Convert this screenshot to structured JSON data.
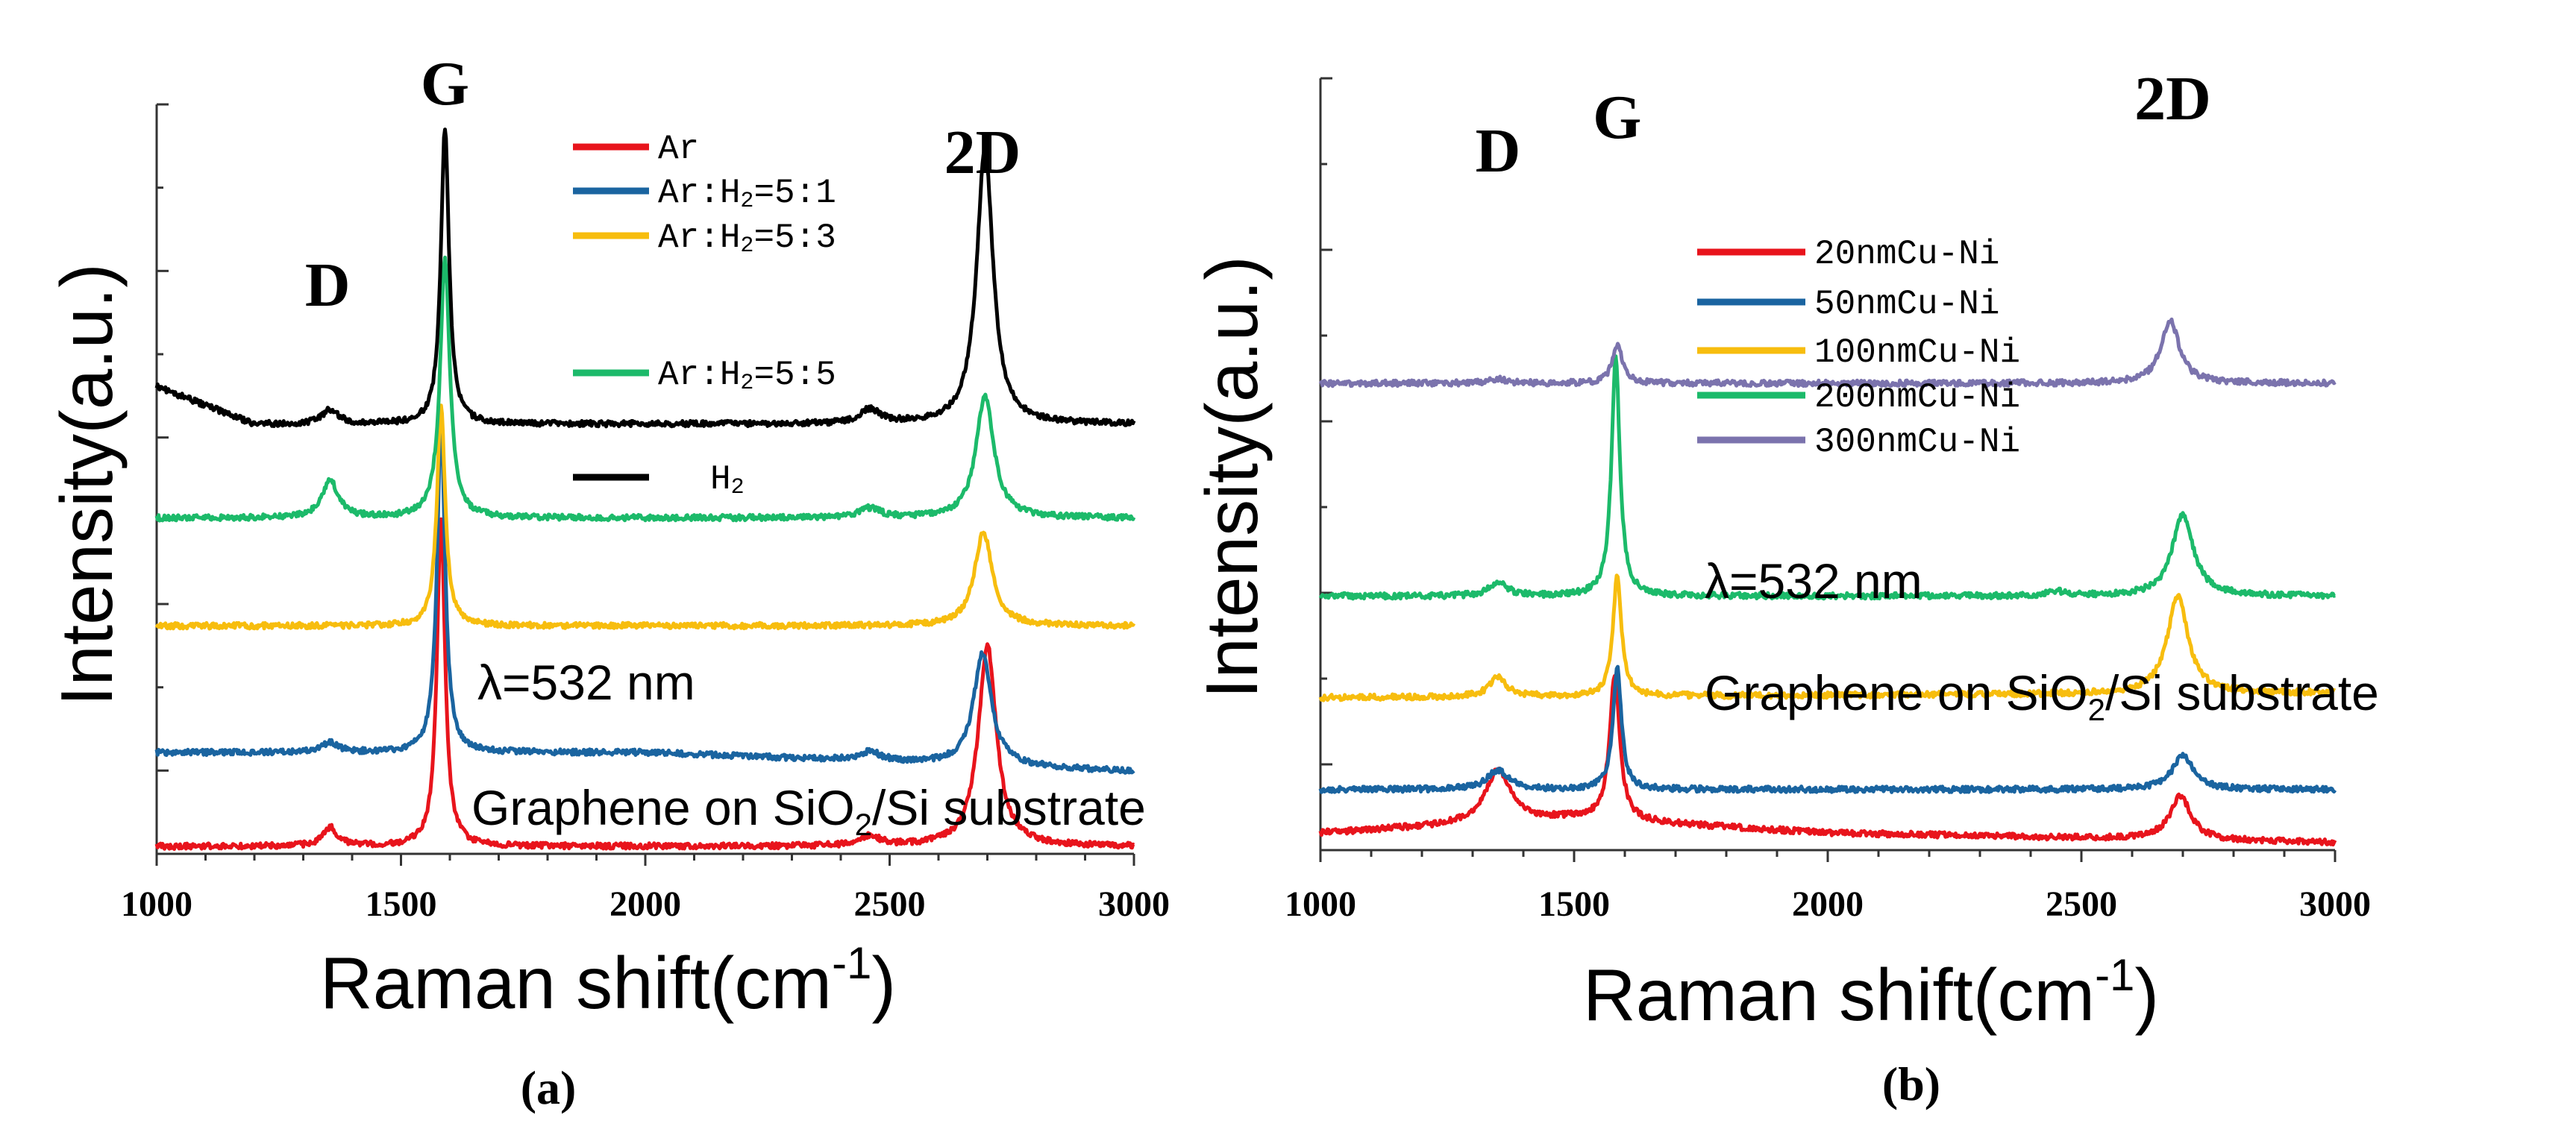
{
  "chart_data": [
    {
      "type": "line",
      "panel_label": "(a)",
      "xlabel": "Raman shift(cm",
      "xlabel_sup": "-1",
      "xlabel_close": ")",
      "ylabel": "Intensity(a.u.)",
      "xlim": [
        1000,
        3000
      ],
      "x_ticks": [
        "1000",
        "1500",
        "2000",
        "2500",
        "3000"
      ],
      "peak_labels": [
        {
          "text": "D",
          "x": 1350
        },
        {
          "text": "G",
          "x": 1590
        },
        {
          "text": "2D",
          "x": 2690
        }
      ],
      "annotations": {
        "wavelength": "λ=532 nm",
        "substrate_pre": "Graphene  on SiO",
        "substrate_sub": "2",
        "substrate_post": "/Si substrate"
      },
      "legend": [
        {
          "main": "Ar",
          "sub": "",
          "tail": "",
          "color": "#e8141c"
        },
        {
          "main": "Ar:H",
          "sub": "2",
          "tail": "=5:1",
          "color": "#1a64a0"
        },
        {
          "main": "Ar:H",
          "sub": "2",
          "tail": "=5:3",
          "color": "#f7bd0e"
        },
        {
          "main": "Ar:H",
          "sub": "2",
          "tail": "=5:5",
          "color": "#1cba6a"
        },
        {
          "main": "H",
          "sub": "2",
          "tail": "",
          "color": "#000000"
        }
      ],
      "series": [
        {
          "name": "Ar",
          "color": "#e8141c",
          "offset": 0.0,
          "baseline_x": [
            1000,
            2000,
            3000
          ],
          "baseline_y": [
            0.0,
            0.0,
            0.0
          ],
          "peaks": [
            [
              1355,
              0.04,
              18
            ],
            [
              1582,
              0.7,
              10
            ],
            [
              2460,
              0.02,
              25
            ],
            [
              2700,
              0.43,
              22
            ]
          ]
        },
        {
          "name": "Ar:H2=5:1",
          "color": "#1a64a0",
          "offset": 0.2,
          "baseline_x": [
            1000,
            2000,
            3000
          ],
          "baseline_y": [
            0.0,
            0.0,
            -0.04
          ],
          "peaks": [
            [
              1355,
              0.02,
              20
            ],
            [
              1582,
              0.7,
              10
            ],
            [
              2460,
              0.02,
              25
            ],
            [
              2690,
              0.24,
              22
            ]
          ]
        },
        {
          "name": "Ar:H2=5:3",
          "color": "#f7bd0e",
          "offset": 0.47,
          "baseline_x": [
            1000,
            2000,
            3000
          ],
          "baseline_y": [
            0.0,
            0.0,
            0.0
          ],
          "peaks": [
            [
              1582,
              0.47,
              10
            ],
            [
              2692,
              0.2,
              22
            ]
          ]
        },
        {
          "name": "Ar:H2=5:5",
          "color": "#1cba6a",
          "offset": 0.7,
          "baseline_x": [
            1000,
            2000,
            3000
          ],
          "baseline_y": [
            0.0,
            0.0,
            0.0
          ],
          "peaks": [
            [
              1355,
              0.08,
              20
            ],
            [
              1590,
              0.55,
              12
            ],
            [
              2460,
              0.02,
              25
            ],
            [
              2695,
              0.26,
              22
            ]
          ]
        },
        {
          "name": "H2",
          "color": "#000000",
          "offset": 0.9,
          "baseline_x": [
            1000,
            1200,
            1500,
            2000,
            3000
          ],
          "baseline_y": [
            0.08,
            0.0,
            0.0,
            0.0,
            0.0
          ],
          "peaks": [
            [
              1355,
              0.03,
              20
            ],
            [
              1590,
              0.63,
              10
            ],
            [
              2460,
              0.03,
              25
            ],
            [
              2695,
              0.59,
              20
            ]
          ]
        }
      ]
    },
    {
      "type": "line",
      "panel_label": "(b)",
      "xlabel": "Raman shift(cm",
      "xlabel_sup": "-1",
      "xlabel_close": ")",
      "ylabel": "Intensity(a.u.)",
      "xlim": [
        1000,
        3000
      ],
      "x_ticks": [
        "1000",
        "1500",
        "2000",
        "2500",
        "3000"
      ],
      "peak_labels": [
        {
          "text": "D",
          "x": 1350
        },
        {
          "text": "G",
          "x": 1585
        },
        {
          "text": "2D",
          "x": 2680
        }
      ],
      "annotations": {
        "wavelength": "λ=532 nm",
        "substrate_pre": "Graphene  on SiO",
        "substrate_sub": "2",
        "substrate_post": "/Si substrate"
      },
      "legend": [
        {
          "main": "20nmCu-Ni",
          "sub": "",
          "tail": "",
          "color": "#e8141c"
        },
        {
          "main": "50nmCu-Ni",
          "sub": "",
          "tail": "",
          "color": "#1a64a0"
        },
        {
          "main": "100nmCu-Ni",
          "sub": "",
          "tail": "",
          "color": "#f7bd0e"
        },
        {
          "main": "200nmCu-Ni",
          "sub": "",
          "tail": "",
          "color": "#1cba6a"
        },
        {
          "main": "300nmCu-Ni",
          "sub": "",
          "tail": "",
          "color": "#7b73ad"
        }
      ],
      "series": [
        {
          "name": "20nmCu-Ni",
          "color": "#e8141c",
          "offset": 0.0,
          "baseline_x": [
            1000,
            1500,
            2000,
            3000
          ],
          "baseline_y": [
            0.02,
            0.05,
            0.02,
            0.0
          ],
          "peaks": [
            [
              1350,
              0.11,
              30
            ],
            [
              1580,
              0.3,
              12
            ],
            [
              2695,
              0.09,
              25
            ]
          ]
        },
        {
          "name": "50nmCu-Ni",
          "color": "#1a64a0",
          "offset": 0.11,
          "baseline_x": [
            1000,
            3000
          ],
          "baseline_y": [
            0.0,
            0.0
          ],
          "peaks": [
            [
              1350,
              0.04,
              25
            ],
            [
              1585,
              0.25,
              10
            ],
            [
              2700,
              0.07,
              25
            ]
          ]
        },
        {
          "name": "100nmCu-Ni",
          "color": "#f7bd0e",
          "offset": 0.3,
          "baseline_x": [
            1000,
            3000
          ],
          "baseline_y": [
            0.0,
            0.01
          ],
          "peaks": [
            [
              1350,
              0.04,
              20
            ],
            [
              1585,
              0.25,
              10
            ],
            [
              2690,
              0.2,
              25
            ]
          ]
        },
        {
          "name": "200nmCu-Ni",
          "color": "#1cba6a",
          "offset": 0.51,
          "baseline_x": [
            1000,
            3000
          ],
          "baseline_y": [
            0.0,
            0.0
          ],
          "peaks": [
            [
              1350,
              0.03,
              20
            ],
            [
              1582,
              0.49,
              10
            ],
            [
              2450,
              0.01,
              20
            ],
            [
              2700,
              0.17,
              25
            ]
          ]
        },
        {
          "name": "300nmCu-Ni",
          "color": "#7b73ad",
          "offset": 0.95,
          "baseline_x": [
            1000,
            3000
          ],
          "baseline_y": [
            0.0,
            0.0
          ],
          "peaks": [
            [
              1350,
              0.01,
              20
            ],
            [
              1585,
              0.08,
              12
            ],
            [
              2675,
              0.13,
              22
            ]
          ]
        }
      ]
    }
  ]
}
